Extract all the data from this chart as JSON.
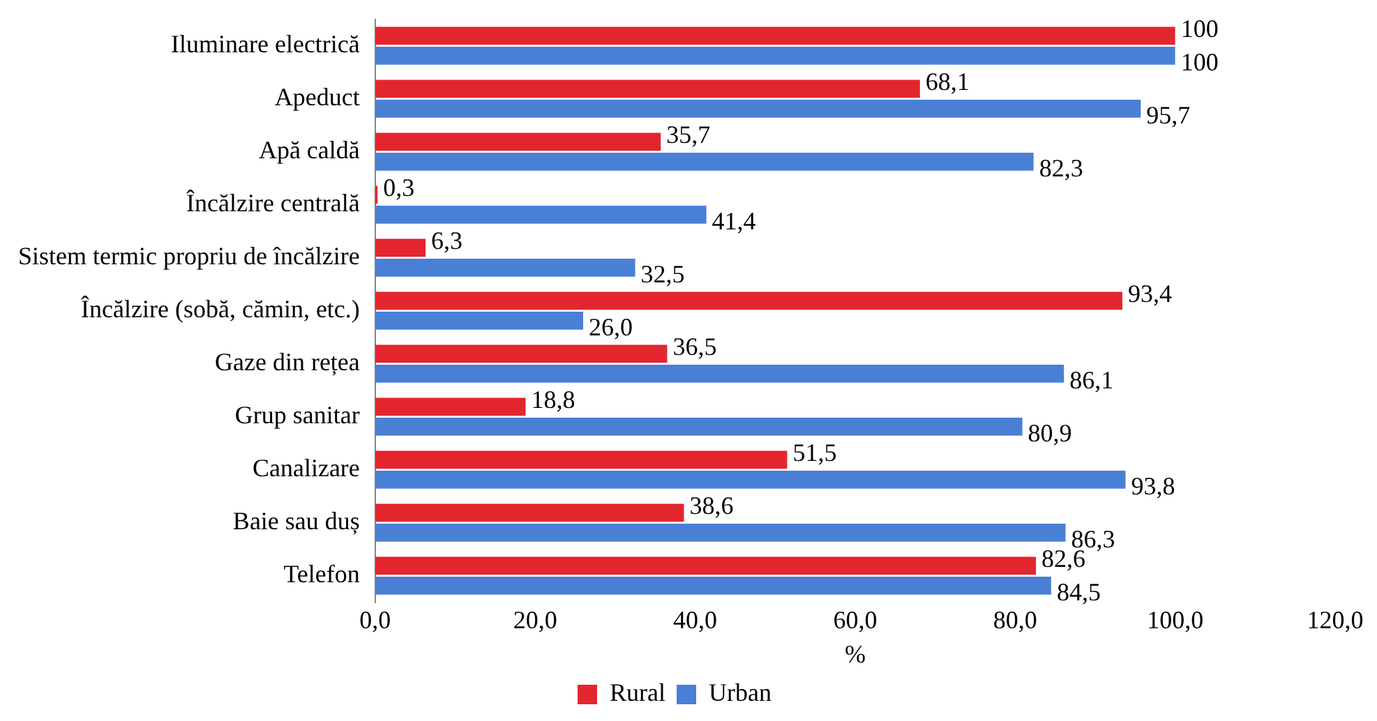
{
  "chart_data": {
    "type": "bar",
    "orientation": "horizontal",
    "xlabel": "%",
    "categories": [
      "Iluminare electrică",
      "Apeduct",
      "Apă caldă",
      "Încălzire centrală",
      "Sistem termic propriu de încălzire",
      "Încălzire (sobă, cămin, etc.)",
      "Gaze din rețea",
      "Grup sanitar",
      "Canalizare",
      "Baie sau duș",
      "Telefon"
    ],
    "series": [
      {
        "name": "Rural",
        "color": "#e3262e",
        "values": [
          100,
          68.1,
          35.7,
          0.3,
          6.3,
          93.4,
          36.5,
          18.8,
          51.5,
          38.6,
          82.6
        ],
        "value_labels": [
          "100",
          "68,1",
          "35,7",
          "0,3",
          "6,3",
          "93,4",
          "36,5",
          "18,8",
          "51,5",
          "38,6",
          "82,6"
        ]
      },
      {
        "name": "Urban",
        "color": "#4a7fd6",
        "values": [
          100,
          95.7,
          82.3,
          41.4,
          32.5,
          26.0,
          86.1,
          80.9,
          93.8,
          86.3,
          84.5
        ],
        "value_labels": [
          "100",
          "95,7",
          "82,3",
          "41,4",
          "32,5",
          "26,0",
          "86,1",
          "80,9",
          "93,8",
          "86,3",
          "84,5"
        ]
      }
    ],
    "xlim": [
      0,
      120
    ],
    "xticks": [
      {
        "value": 0,
        "label": "0,0"
      },
      {
        "value": 20,
        "label": "20,0"
      },
      {
        "value": 40,
        "label": "40,0"
      },
      {
        "value": 60,
        "label": "60,0"
      },
      {
        "value": 80,
        "label": "80,0"
      },
      {
        "value": 100,
        "label": "100,0"
      },
      {
        "value": 120,
        "label": "120,0"
      }
    ],
    "grid": false,
    "legend": "bottom"
  }
}
